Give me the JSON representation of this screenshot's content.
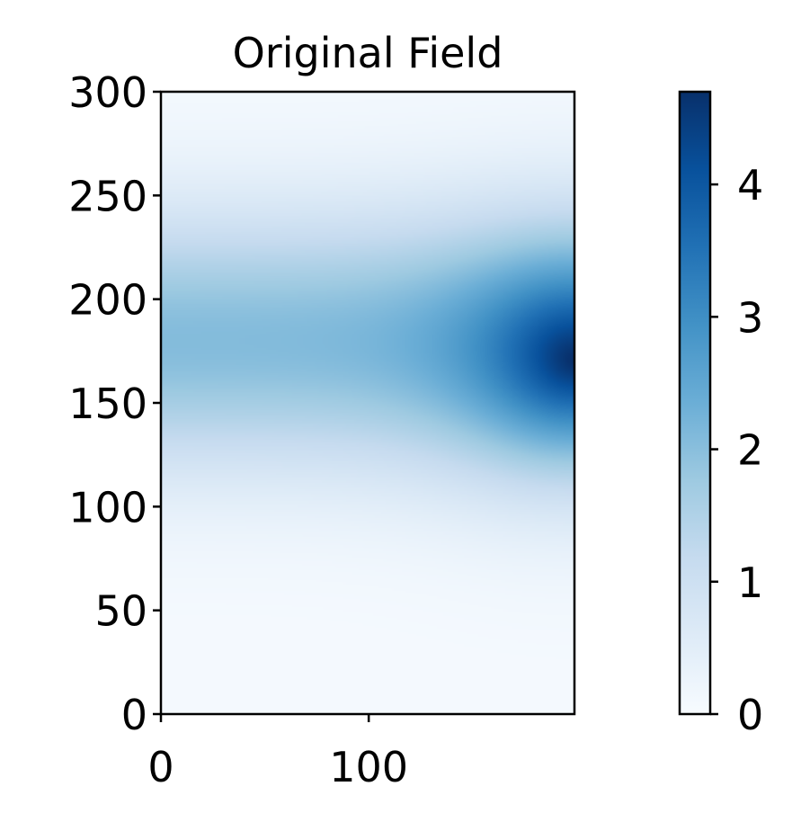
{
  "chart_data": {
    "type": "heatmap",
    "title": "Original Field",
    "xlabel": "",
    "ylabel": "",
    "x_range": [
      0,
      199
    ],
    "y_range": [
      0,
      300
    ],
    "x_ticks": [
      0,
      100
    ],
    "y_ticks": [
      0,
      50,
      100,
      150,
      200,
      250,
      300
    ],
    "colormap": "Blues",
    "colorbar": {
      "range": [
        0,
        4.7
      ],
      "ticks": [
        0,
        1,
        2,
        3,
        4
      ]
    },
    "field_description": "values rise toward peak near x=199, y=170; ridge band y 150-220 about 2, peak about 4.7",
    "grid": false
  }
}
